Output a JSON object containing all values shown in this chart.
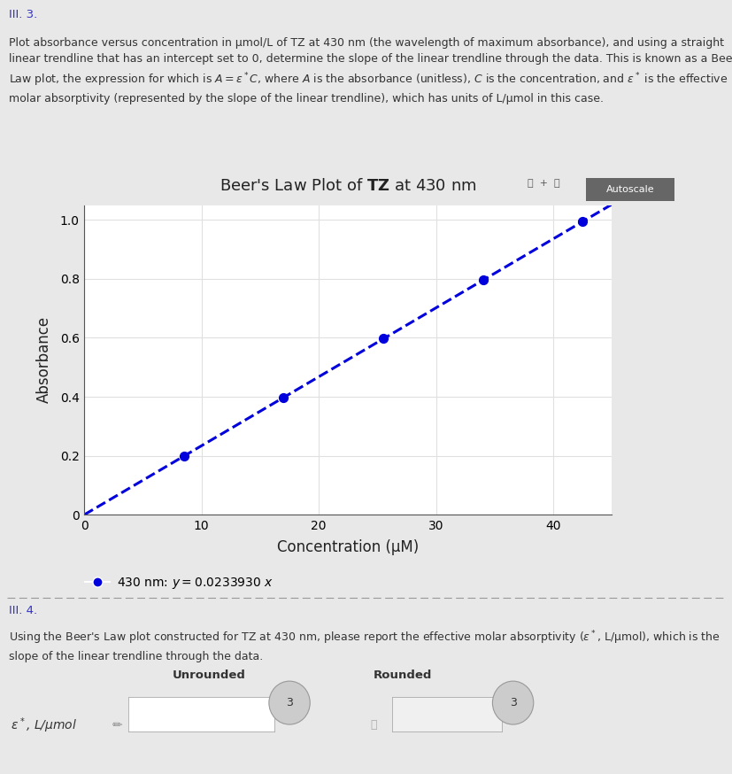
{
  "title": "Beer's Law Plot of $\\mathbf{TZ}$ at 430 nm",
  "xlabel": "Concentration (μM)",
  "ylabel": "Absorbance",
  "slope": 0.023393,
  "x_data": [
    8.5,
    17.0,
    25.5,
    34.0,
    42.5
  ],
  "y_data": [
    0.199,
    0.398,
    0.597,
    0.796,
    0.995
  ],
  "xlim": [
    0,
    45
  ],
  "ylim": [
    0,
    1.05
  ],
  "xticks": [
    0,
    10,
    20,
    30,
    40
  ],
  "yticks": [
    0,
    0.2,
    0.4,
    0.6,
    0.8,
    1.0
  ],
  "dot_color": "#0000dd",
  "line_color": "#0000dd",
  "dot_size": 50,
  "legend_label": "430 nm: $y = 0.0233930\\ x$",
  "chart_bg": "#ffffff",
  "grid_color": "#e0e0e0",
  "outer_bg": "#e8e8e8",
  "panel_bg": "#f5f5f5"
}
